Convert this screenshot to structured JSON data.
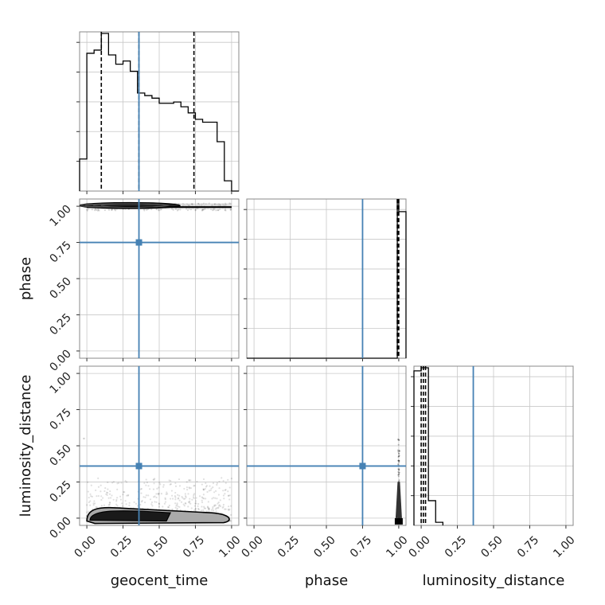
{
  "chart_data": {
    "type": "corner",
    "parameters": [
      "geocent_time",
      "phase",
      "luminosity_distance"
    ],
    "tick_labels": [
      "0.00",
      "0.25",
      "0.50",
      "0.75",
      "1.00"
    ],
    "xlim": [
      -0.05,
      1.05
    ],
    "ylim": [
      -0.05,
      1.05
    ],
    "grid": true,
    "truths": {
      "geocent_time": 0.36,
      "phase": 0.75,
      "luminosity_distance": 0.36,
      "color": "#4682b4"
    },
    "marginals": [
      {
        "parameter": "geocent_time",
        "bin_edges": [
          -0.05,
          0.0,
          0.05,
          0.1,
          0.15,
          0.2,
          0.25,
          0.3,
          0.35,
          0.4,
          0.45,
          0.5,
          0.55,
          0.6,
          0.65,
          0.7,
          0.75,
          0.8,
          0.85,
          0.9,
          0.95,
          1.0,
          1.05
        ],
        "counts": [
          1.0,
          4.3,
          4.4,
          4.92,
          4.25,
          3.96,
          4.06,
          3.74,
          3.06,
          2.98,
          2.9,
          2.74,
          2.74,
          2.78,
          2.63,
          2.44,
          2.24,
          2.15,
          2.15,
          1.54,
          0.32,
          0.0
        ],
        "quantiles": [
          0.1,
          0.36,
          0.74
        ]
      },
      {
        "parameter": "phase",
        "bin_edges": [
          -0.05,
          0.0,
          0.05,
          0.1,
          0.15,
          0.2,
          0.25,
          0.3,
          0.35,
          0.4,
          0.45,
          0.5,
          0.55,
          0.6,
          0.65,
          0.7,
          0.75,
          0.8,
          0.85,
          0.9,
          0.95,
          0.99,
          1.0,
          1.05
        ],
        "counts": [
          0,
          0,
          0,
          0,
          0,
          0,
          0,
          0,
          0,
          0,
          0,
          0,
          0,
          0,
          0,
          0,
          0,
          0,
          0,
          0,
          0,
          1.0,
          0.93
        ],
        "quantiles": [
          0.99,
          0.995,
          1.0
        ]
      },
      {
        "parameter": "luminosity_distance",
        "bin_edges": [
          -0.05,
          0.0,
          0.05,
          0.1,
          0.15
        ],
        "counts": [
          1.0,
          1.02,
          0.16,
          0.02
        ],
        "quantiles": [
          0.0,
          0.015,
          0.03
        ]
      }
    ],
    "contours": [
      {
        "x": "geocent_time",
        "y": "phase",
        "core_x": [
          0.0,
          0.7
        ],
        "core_y": [
          0.99,
          1.02
        ],
        "tail_x_max": 1.0
      },
      {
        "x": "geocent_time",
        "y": "luminosity_distance",
        "core_x": [
          0.0,
          1.0
        ],
        "core_y": [
          -0.02,
          0.07
        ]
      },
      {
        "x": "phase",
        "y": "luminosity_distance",
        "core_x": [
          0.99,
          1.01
        ],
        "core_y": [
          -0.02,
          0.0
        ],
        "scatter_y_max": 0.55
      }
    ]
  }
}
